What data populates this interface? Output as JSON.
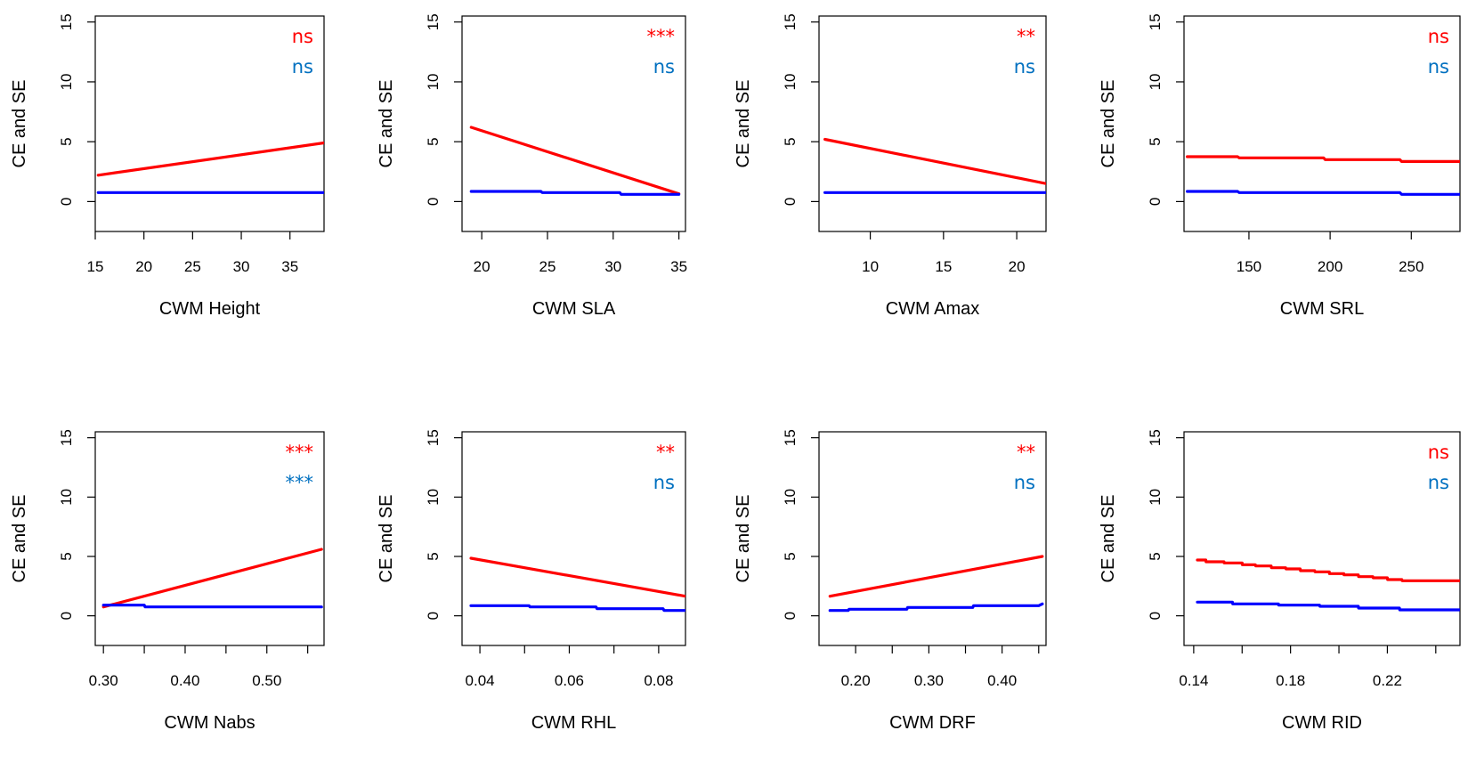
{
  "colors": {
    "ce": "#ff0000",
    "se": "#0000ff",
    "ce_label": "#ff0000",
    "se_label": "#0070c0",
    "axis": "#000000"
  },
  "chart_data": [
    {
      "type": "line",
      "xlabel": "CWM Height",
      "ylabel": "CE and SE",
      "xlim": [
        15,
        38.5
      ],
      "ylim": [
        -2.5,
        15.5
      ],
      "xticks": [
        15,
        20,
        25,
        30,
        35
      ],
      "xtick_labels": [
        "15",
        "20",
        "25",
        "30",
        "35"
      ],
      "yticks": [
        0,
        5,
        10,
        15
      ],
      "ytick_labels": [
        "0",
        "5",
        "10",
        "15"
      ],
      "annotations": {
        "ce": "ns",
        "se": "ns"
      },
      "series": [
        {
          "key": "ce",
          "step": false,
          "x": [
            15.3,
            38.5
          ],
          "y": [
            2.2,
            4.9
          ]
        },
        {
          "key": "se",
          "step": false,
          "x": [
            15.3,
            38.5
          ],
          "y": [
            0.75,
            0.75
          ]
        }
      ]
    },
    {
      "type": "line",
      "xlabel": "CWM SLA",
      "ylabel": "CE and SE",
      "xlim": [
        18.5,
        35.5
      ],
      "ylim": [
        -2.5,
        15.5
      ],
      "xticks": [
        20,
        25,
        30,
        35
      ],
      "xtick_labels": [
        "20",
        "25",
        "30",
        "35"
      ],
      "yticks": [
        0,
        5,
        10,
        15
      ],
      "ytick_labels": [
        "0",
        "5",
        "10",
        "15"
      ],
      "annotations": {
        "ce": "***",
        "se": "ns"
      },
      "series": [
        {
          "key": "ce",
          "step": false,
          "x": [
            19.2,
            35.0
          ],
          "y": [
            6.2,
            0.65
          ]
        },
        {
          "key": "se",
          "step": true,
          "x": [
            19.2,
            24.5,
            24.6,
            30.5,
            30.6,
            35.0
          ],
          "y": [
            0.85,
            0.85,
            0.75,
            0.75,
            0.6,
            0.6
          ]
        }
      ]
    },
    {
      "type": "line",
      "xlabel": "CWM Amax",
      "ylabel": "CE and SE",
      "xlim": [
        6.5,
        22
      ],
      "ylim": [
        -2.5,
        15.5
      ],
      "xticks": [
        10,
        15,
        20
      ],
      "xtick_labels": [
        "10",
        "15",
        "20"
      ],
      "yticks": [
        0,
        5,
        10,
        15
      ],
      "ytick_labels": [
        "0",
        "5",
        "10",
        "15"
      ],
      "annotations": {
        "ce": "**",
        "se": "ns"
      },
      "series": [
        {
          "key": "ce",
          "step": false,
          "x": [
            6.9,
            22.0
          ],
          "y": [
            5.2,
            1.5
          ]
        },
        {
          "key": "se",
          "step": false,
          "x": [
            6.9,
            22.0
          ],
          "y": [
            0.75,
            0.75
          ]
        }
      ]
    },
    {
      "type": "line",
      "xlabel": "CWM SRL",
      "ylabel": "CE and SE",
      "xlim": [
        110,
        280
      ],
      "ylim": [
        -2.5,
        15.5
      ],
      "xticks": [
        150,
        200,
        250
      ],
      "xtick_labels": [
        "150",
        "200",
        "250"
      ],
      "yticks": [
        0,
        5,
        10,
        15
      ],
      "ytick_labels": [
        "0",
        "5",
        "10",
        "15"
      ],
      "annotations": {
        "ce": "ns",
        "se": "ns"
      },
      "series": [
        {
          "key": "ce",
          "step": true,
          "x": [
            112,
            143,
            144,
            196,
            197,
            243,
            244,
            280
          ],
          "y": [
            3.75,
            3.75,
            3.65,
            3.65,
            3.5,
            3.5,
            3.35,
            3.35
          ]
        },
        {
          "key": "se",
          "step": true,
          "x": [
            112,
            143,
            144,
            243,
            244,
            280
          ],
          "y": [
            0.85,
            0.85,
            0.75,
            0.75,
            0.6,
            0.6
          ]
        }
      ]
    },
    {
      "type": "line",
      "xlabel": "CWM Nabs",
      "ylabel": "CE and SE",
      "xlim": [
        0.29,
        0.57
      ],
      "ylim": [
        -2.5,
        15.5
      ],
      "xticks": [
        0.3,
        0.35,
        0.4,
        0.45,
        0.5,
        0.55
      ],
      "xtick_labels": [
        "0.30",
        "",
        "0.40",
        "",
        "0.50",
        ""
      ],
      "yticks": [
        0,
        5,
        10,
        15
      ],
      "ytick_labels": [
        "0",
        "5",
        "10",
        "15"
      ],
      "annotations": {
        "ce": "***",
        "se": "***"
      },
      "series": [
        {
          "key": "ce",
          "step": false,
          "x": [
            0.3,
            0.567
          ],
          "y": [
            0.75,
            5.6
          ]
        },
        {
          "key": "se",
          "step": true,
          "x": [
            0.3,
            0.35,
            0.351,
            0.567
          ],
          "y": [
            0.9,
            0.9,
            0.75,
            0.75
          ]
        }
      ]
    },
    {
      "type": "line",
      "xlabel": "CWM RHL",
      "ylabel": "CE and SE",
      "xlim": [
        0.036,
        0.086
      ],
      "ylim": [
        -2.5,
        15.5
      ],
      "xticks": [
        0.04,
        0.05,
        0.06,
        0.07,
        0.08
      ],
      "xtick_labels": [
        "0.04",
        "",
        "0.06",
        "",
        "0.08"
      ],
      "yticks": [
        0,
        5,
        10,
        15
      ],
      "ytick_labels": [
        "0",
        "5",
        "10",
        "15"
      ],
      "annotations": {
        "ce": "**",
        "se": "ns"
      },
      "series": [
        {
          "key": "ce",
          "step": false,
          "x": [
            0.038,
            0.086
          ],
          "y": [
            4.85,
            1.65
          ]
        },
        {
          "key": "se",
          "step": true,
          "x": [
            0.038,
            0.051,
            0.0512,
            0.066,
            0.0662,
            0.081,
            0.0812,
            0.086
          ],
          "y": [
            0.85,
            0.85,
            0.75,
            0.75,
            0.6,
            0.6,
            0.45,
            0.45
          ]
        }
      ]
    },
    {
      "type": "line",
      "xlabel": "CWM DRF",
      "ylabel": "CE and SE",
      "xlim": [
        0.15,
        0.46
      ],
      "ylim": [
        -2.5,
        15.5
      ],
      "xticks": [
        0.2,
        0.25,
        0.3,
        0.35,
        0.4,
        0.45
      ],
      "xtick_labels": [
        "0.20",
        "",
        "0.30",
        "",
        "0.40",
        ""
      ],
      "yticks": [
        0,
        5,
        10,
        15
      ],
      "ytick_labels": [
        "0",
        "5",
        "10",
        "15"
      ],
      "annotations": {
        "ce": "**",
        "se": "ns"
      },
      "series": [
        {
          "key": "ce",
          "step": false,
          "x": [
            0.165,
            0.455
          ],
          "y": [
            1.65,
            5.0
          ]
        },
        {
          "key": "se",
          "step": true,
          "x": [
            0.165,
            0.19,
            0.191,
            0.27,
            0.271,
            0.36,
            0.361,
            0.45,
            0.455
          ],
          "y": [
            0.45,
            0.45,
            0.55,
            0.55,
            0.7,
            0.7,
            0.85,
            0.85,
            1.0
          ]
        }
      ]
    },
    {
      "type": "line",
      "xlabel": "CWM RID",
      "ylabel": "CE and SE",
      "xlim": [
        0.136,
        0.25
      ],
      "ylim": [
        -2.5,
        15.5
      ],
      "xticks": [
        0.14,
        0.16,
        0.18,
        0.2,
        0.22,
        0.24
      ],
      "xtick_labels": [
        "0.14",
        "",
        "0.18",
        "",
        "0.22",
        ""
      ],
      "yticks": [
        0,
        5,
        10,
        15
      ],
      "ytick_labels": [
        "0",
        "5",
        "10",
        "15"
      ],
      "annotations": {
        "ce": "ns",
        "se": "ns"
      },
      "series": [
        {
          "key": "ce",
          "step": true,
          "x": [
            0.1415,
            0.145,
            0.1451,
            0.1525,
            0.1526,
            0.16,
            0.1601,
            0.1655,
            0.1656,
            0.172,
            0.1721,
            0.178,
            0.1781,
            0.184,
            0.1841,
            0.19,
            0.1901,
            0.196,
            0.1961,
            0.202,
            0.2021,
            0.208,
            0.2081,
            0.214,
            0.2141,
            0.22,
            0.2201,
            0.226,
            0.2261,
            0.25
          ],
          "y": [
            4.7,
            4.7,
            4.55,
            4.55,
            4.45,
            4.45,
            4.3,
            4.3,
            4.2,
            4.2,
            4.05,
            4.05,
            3.95,
            3.95,
            3.8,
            3.8,
            3.7,
            3.7,
            3.55,
            3.55,
            3.45,
            3.45,
            3.3,
            3.3,
            3.2,
            3.2,
            3.05,
            3.05,
            2.95,
            2.95
          ]
        },
        {
          "key": "se",
          "step": true,
          "x": [
            0.1415,
            0.156,
            0.1561,
            0.175,
            0.1751,
            0.192,
            0.1921,
            0.208,
            0.2081,
            0.225,
            0.2251,
            0.25
          ],
          "y": [
            1.15,
            1.15,
            1.0,
            1.0,
            0.9,
            0.9,
            0.8,
            0.8,
            0.65,
            0.65,
            0.5,
            0.5
          ]
        }
      ]
    }
  ]
}
